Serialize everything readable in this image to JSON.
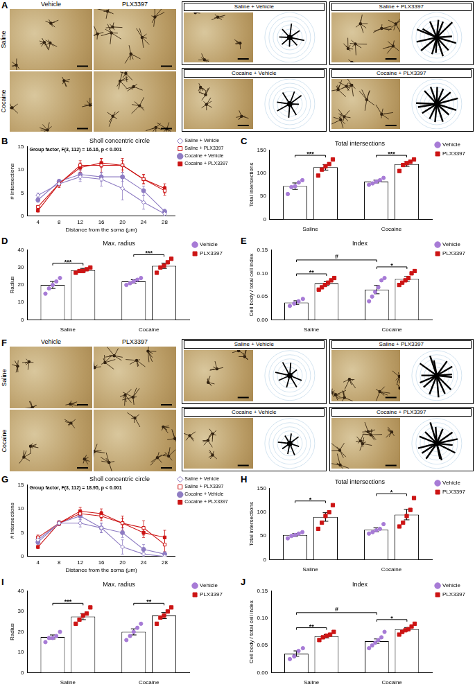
{
  "image_panels": [
    {
      "panel": "A",
      "columns": [
        "Vehicle",
        "PLX3397"
      ],
      "rows": [
        "Saline",
        "Cocaine"
      ],
      "cells": [
        "Saline + Vehicle",
        "Saline + PLX3397",
        "Cocaine + Vehicle",
        "Cocaine + PLX3397"
      ]
    },
    {
      "panel": "F",
      "columns": [
        "Vehicle",
        "PLX3397"
      ],
      "rows": [
        "Saline",
        "Cocaine"
      ],
      "cells": [
        "Saline + Vehicle",
        "Saline + PLX3397",
        "Cocaine + Vehicle",
        "Cocaine + PLX3397"
      ]
    }
  ],
  "chart_data": [
    {
      "panel": "B",
      "type": "line",
      "title": "Sholl concentric circle",
      "x_label": "Distance from the soma (μm)",
      "y_label": "# Intersections",
      "annotation": "Group factor, F(3, 112) = 16.16, p < 0.001",
      "x": [
        4,
        8,
        12,
        16,
        20,
        24,
        28
      ],
      "xlim": [
        2,
        30
      ],
      "xticks": [
        4,
        8,
        12,
        16,
        20,
        24,
        28
      ],
      "ylim": [
        0,
        15
      ],
      "yticks": [
        0,
        5,
        10,
        15
      ],
      "grid": false,
      "legend": "top-right",
      "series": [
        {
          "name": "Saline + Vehicle",
          "color": "#8e7cc3",
          "marker": "diamond-open",
          "values": [
            4.5,
            7,
            8.5,
            8,
            6,
            3,
            0.5
          ],
          "errors": [
            0.5,
            0.5,
            1,
            1.5,
            2.5,
            1.5,
            0.5
          ]
        },
        {
          "name": "Saline + PLX3397",
          "color": "#cc1414",
          "marker": "square-open",
          "values": [
            2,
            7,
            11,
            11,
            11,
            8,
            5.5
          ],
          "errors": [
            0.3,
            0.8,
            1,
            1.5,
            1.5,
            1,
            1
          ]
        },
        {
          "name": "Cocaine + Vehicle",
          "color": "#8e7cc3",
          "marker": "circle",
          "values": [
            3.5,
            7.5,
            9,
            8.5,
            8.5,
            5.5,
            1
          ],
          "errors": [
            0.5,
            0.5,
            1,
            1,
            1,
            1,
            0.5
          ]
        },
        {
          "name": "Cocaine + PLX3397",
          "color": "#cc1414",
          "marker": "square",
          "values": [
            1.2,
            7,
            10.5,
            11.5,
            11,
            8,
            6
          ],
          "errors": [
            0.3,
            0.5,
            1,
            1,
            1,
            1,
            1
          ]
        }
      ]
    },
    {
      "panel": "C",
      "type": "bar",
      "title": "Total intersections",
      "y_label": "Total intersections",
      "categories": [
        "Saline",
        "Cocaine"
      ],
      "ylim": [
        0,
        150
      ],
      "yticks": [
        0,
        50,
        100,
        150
      ],
      "grid": false,
      "legend": "top-right",
      "series": [
        {
          "name": "Vehicle",
          "color": "#a77bd6",
          "marker": "circle",
          "values": [
            72,
            82
          ],
          "errors": [
            7,
            3
          ],
          "points": [
            [
              55,
              70,
              72,
              80,
              85
            ],
            [
              75,
              78,
              82,
              85,
              90
            ]
          ]
        },
        {
          "name": "PLX3397",
          "color": "#cc1414",
          "marker": "square",
          "values": [
            113,
            120
          ],
          "errors": [
            6,
            5
          ],
          "points": [
            [
              95,
              108,
              115,
              120,
              130
            ],
            [
              105,
              118,
              122,
              125,
              130
            ]
          ]
        }
      ],
      "significance": [
        {
          "label": "***",
          "from": [
            "Saline",
            "Vehicle"
          ],
          "to": [
            "Saline",
            "PLX3397"
          ]
        },
        {
          "label": "***",
          "from": [
            "Cocaine",
            "Vehicle"
          ],
          "to": [
            "Cocaine",
            "PLX3397"
          ]
        }
      ]
    },
    {
      "panel": "D",
      "type": "bar",
      "title": "Max. radius",
      "y_label": "Radius",
      "categories": [
        "Saline",
        "Cocaine"
      ],
      "ylim": [
        0,
        40
      ],
      "yticks": [
        0,
        10,
        20,
        30,
        40
      ],
      "grid": false,
      "legend": "top-right",
      "series": [
        {
          "name": "Vehicle",
          "color": "#a77bd6",
          "marker": "circle",
          "values": [
            20,
            22
          ],
          "errors": [
            2,
            1
          ],
          "points": [
            [
              15,
              18,
              20,
              22,
              24
            ],
            [
              20,
              21,
              22,
              23,
              24
            ]
          ]
        },
        {
          "name": "PLX3397",
          "color": "#cc1414",
          "marker": "square",
          "values": [
            28.5,
            31
          ],
          "errors": [
            1,
            1.5
          ],
          "points": [
            [
              27,
              28,
              28,
              29,
              30
            ],
            [
              27,
              30,
              31,
              33,
              35
            ]
          ]
        }
      ],
      "significance": [
        {
          "label": "***",
          "from": [
            "Saline",
            "Vehicle"
          ],
          "to": [
            "Saline",
            "PLX3397"
          ]
        },
        {
          "label": "***",
          "from": [
            "Cocaine",
            "Vehicle"
          ],
          "to": [
            "Cocaine",
            "PLX3397"
          ]
        }
      ]
    },
    {
      "panel": "E",
      "type": "bar",
      "title": "Index",
      "y_label": "Cell body / total cell index",
      "categories": [
        "Saline",
        "Cocaine"
      ],
      "ylim": [
        0,
        0.15
      ],
      "yticks": [
        {
          "value": 0,
          "label": "0.00"
        },
        {
          "value": 0.05,
          "label": "0.05"
        },
        {
          "value": 0.1,
          "label": "0.10"
        },
        {
          "value": 0.15,
          "label": "0.15"
        }
      ],
      "grid": false,
      "legend": "top-right",
      "series": [
        {
          "name": "Vehicle",
          "color": "#a77bd6",
          "marker": "circle",
          "values": [
            0.037,
            0.065
          ],
          "errors": [
            0.004,
            0.009
          ],
          "points": [
            [
              0.03,
              0.035,
              0.04,
              0.045
            ],
            [
              0.04,
              0.05,
              0.06,
              0.07,
              0.085,
              0.09
            ]
          ]
        },
        {
          "name": "PLX3397",
          "color": "#cc1414",
          "marker": "square",
          "values": [
            0.078,
            0.088
          ],
          "errors": [
            0.004,
            0.005
          ],
          "points": [
            [
              0.065,
              0.07,
              0.075,
              0.08,
              0.085,
              0.09
            ],
            [
              0.075,
              0.08,
              0.085,
              0.09,
              0.1,
              0.105
            ]
          ]
        }
      ],
      "significance": [
        {
          "label": "**",
          "from": [
            "Saline",
            "Vehicle"
          ],
          "to": [
            "Saline",
            "PLX3397"
          ]
        },
        {
          "label": "*",
          "from": [
            "Cocaine",
            "Vehicle"
          ],
          "to": [
            "Cocaine",
            "PLX3397"
          ]
        },
        {
          "label": "#",
          "from": [
            "Saline",
            "Vehicle"
          ],
          "to": [
            "Cocaine",
            "Vehicle"
          ]
        }
      ]
    },
    {
      "panel": "G",
      "type": "line",
      "title": "Sholl concentric circle",
      "x_label": "Distance from the soma (μm)",
      "y_label": "# Intersections",
      "annotation": "Group factor, F(3, 112) = 18.95, p < 0.001",
      "x": [
        4,
        8,
        12,
        16,
        20,
        24,
        28
      ],
      "xlim": [
        2,
        30
      ],
      "xticks": [
        4,
        8,
        12,
        16,
        20,
        24,
        28
      ],
      "ylim": [
        0,
        15
      ],
      "yticks": [
        0,
        5,
        10,
        15
      ],
      "grid": false,
      "legend": "top-right",
      "series": [
        {
          "name": "Saline + Vehicle",
          "color": "#8e7cc3",
          "marker": "diamond-open",
          "values": [
            3.5,
            7,
            7,
            6,
            2,
            0.5,
            0
          ],
          "errors": [
            0.5,
            0.5,
            0.8,
            1,
            1.5,
            0.5,
            0.3
          ]
        },
        {
          "name": "Saline + PLX3397",
          "color": "#cc1414",
          "marker": "square-open",
          "values": [
            4,
            7,
            9,
            8.5,
            7,
            6,
            2.5
          ],
          "errors": [
            0.5,
            0.5,
            0.8,
            1,
            1.5,
            1.5,
            1.5
          ]
        },
        {
          "name": "Cocaine + Vehicle",
          "color": "#8e7cc3",
          "marker": "circle",
          "values": [
            3,
            7,
            8.5,
            6,
            5,
            1.5,
            0.5
          ],
          "errors": [
            0.5,
            0.5,
            0.8,
            1,
            1,
            1,
            0.5
          ]
        },
        {
          "name": "Cocaine + PLX3397",
          "color": "#cc1414",
          "marker": "square",
          "values": [
            2,
            7,
            9.5,
            9,
            7,
            5,
            4
          ],
          "errors": [
            0.3,
            0.5,
            0.8,
            1,
            1,
            1,
            1.5
          ]
        }
      ]
    },
    {
      "panel": "H",
      "type": "bar",
      "title": "Total intersections",
      "y_label": "Total intersections",
      "categories": [
        "Saline",
        "Cocaine"
      ],
      "ylim": [
        0,
        150
      ],
      "yticks": [
        0,
        50,
        100,
        150
      ],
      "grid": false,
      "legend": "top-right",
      "series": [
        {
          "name": "Vehicle",
          "color": "#a77bd6",
          "marker": "circle",
          "values": [
            52,
            63
          ],
          "errors": [
            3,
            4
          ],
          "points": [
            [
              45,
              50,
              52,
              55,
              58
            ],
            [
              55,
              58,
              62,
              65,
              75
            ]
          ]
        },
        {
          "name": "PLX3397",
          "color": "#cc1414",
          "marker": "square",
          "values": [
            90,
            95
          ],
          "errors": [
            9,
            11
          ],
          "points": [
            [
              65,
              78,
              92,
              100,
              115
            ],
            [
              70,
              78,
              92,
              105,
              130
            ]
          ]
        }
      ],
      "significance": [
        {
          "label": "*",
          "from": [
            "Saline",
            "Vehicle"
          ],
          "to": [
            "Saline",
            "PLX3397"
          ]
        },
        {
          "label": "*",
          "from": [
            "Cocaine",
            "Vehicle"
          ],
          "to": [
            "Cocaine",
            "PLX3397"
          ]
        }
      ]
    },
    {
      "panel": "I",
      "type": "bar",
      "title": "Max. radius",
      "y_label": "Radius",
      "categories": [
        "Saline",
        "Cocaine"
      ],
      "ylim": [
        0,
        40
      ],
      "yticks": [
        0,
        10,
        20,
        30,
        40
      ],
      "grid": false,
      "legend": "top-right",
      "series": [
        {
          "name": "Vehicle",
          "color": "#a77bd6",
          "marker": "circle",
          "values": [
            17.5,
            20
          ],
          "errors": [
            1,
            1.5
          ],
          "points": [
            [
              15,
              17,
              17,
              18,
              20
            ],
            [
              16,
              18,
              20,
              22,
              24
            ]
          ]
        },
        {
          "name": "PLX3397",
          "color": "#cc1414",
          "marker": "square",
          "values": [
            27.5,
            28
          ],
          "errors": [
            1.5,
            1.5
          ],
          "points": [
            [
              24,
              26,
              28,
              29,
              32
            ],
            [
              24,
              27,
              28,
              30,
              32
            ]
          ]
        }
      ],
      "significance": [
        {
          "label": "***",
          "from": [
            "Saline",
            "Vehicle"
          ],
          "to": [
            "Saline",
            "PLX3397"
          ]
        },
        {
          "label": "**",
          "from": [
            "Cocaine",
            "Vehicle"
          ],
          "to": [
            "Cocaine",
            "PLX3397"
          ]
        }
      ]
    },
    {
      "panel": "J",
      "type": "bar",
      "title": "Index",
      "y_label": "Cell body / total cell index",
      "categories": [
        "Saline",
        "Cocaine"
      ],
      "ylim": [
        0,
        0.15
      ],
      "yticks": [
        {
          "value": 0,
          "label": "0.00"
        },
        {
          "value": 0.05,
          "label": "0.05"
        },
        {
          "value": 0.1,
          "label": "0.10"
        },
        {
          "value": 0.15,
          "label": "0.15"
        }
      ],
      "grid": false,
      "legend": "top-right",
      "series": [
        {
          "name": "Vehicle",
          "color": "#a77bd6",
          "marker": "circle",
          "values": [
            0.035,
            0.058
          ],
          "errors": [
            0.005,
            0.004
          ],
          "points": [
            [
              0.025,
              0.03,
              0.04,
              0.045
            ],
            [
              0.045,
              0.05,
              0.055,
              0.06,
              0.065,
              0.075
            ]
          ]
        },
        {
          "name": "PLX3397",
          "color": "#cc1414",
          "marker": "square",
          "values": [
            0.067,
            0.08
          ],
          "errors": [
            0.003,
            0.003
          ],
          "points": [
            [
              0.06,
              0.065,
              0.068,
              0.07,
              0.075
            ],
            [
              0.07,
              0.075,
              0.078,
              0.08,
              0.085,
              0.09
            ]
          ]
        }
      ],
      "significance": [
        {
          "label": "**",
          "from": [
            "Saline",
            "Vehicle"
          ],
          "to": [
            "Saline",
            "PLX3397"
          ]
        },
        {
          "label": "*",
          "from": [
            "Cocaine",
            "Vehicle"
          ],
          "to": [
            "Cocaine",
            "PLX3397"
          ]
        },
        {
          "label": "#",
          "from": [
            "Saline",
            "Vehicle"
          ],
          "to": [
            "Cocaine",
            "Vehicle"
          ]
        }
      ]
    }
  ]
}
